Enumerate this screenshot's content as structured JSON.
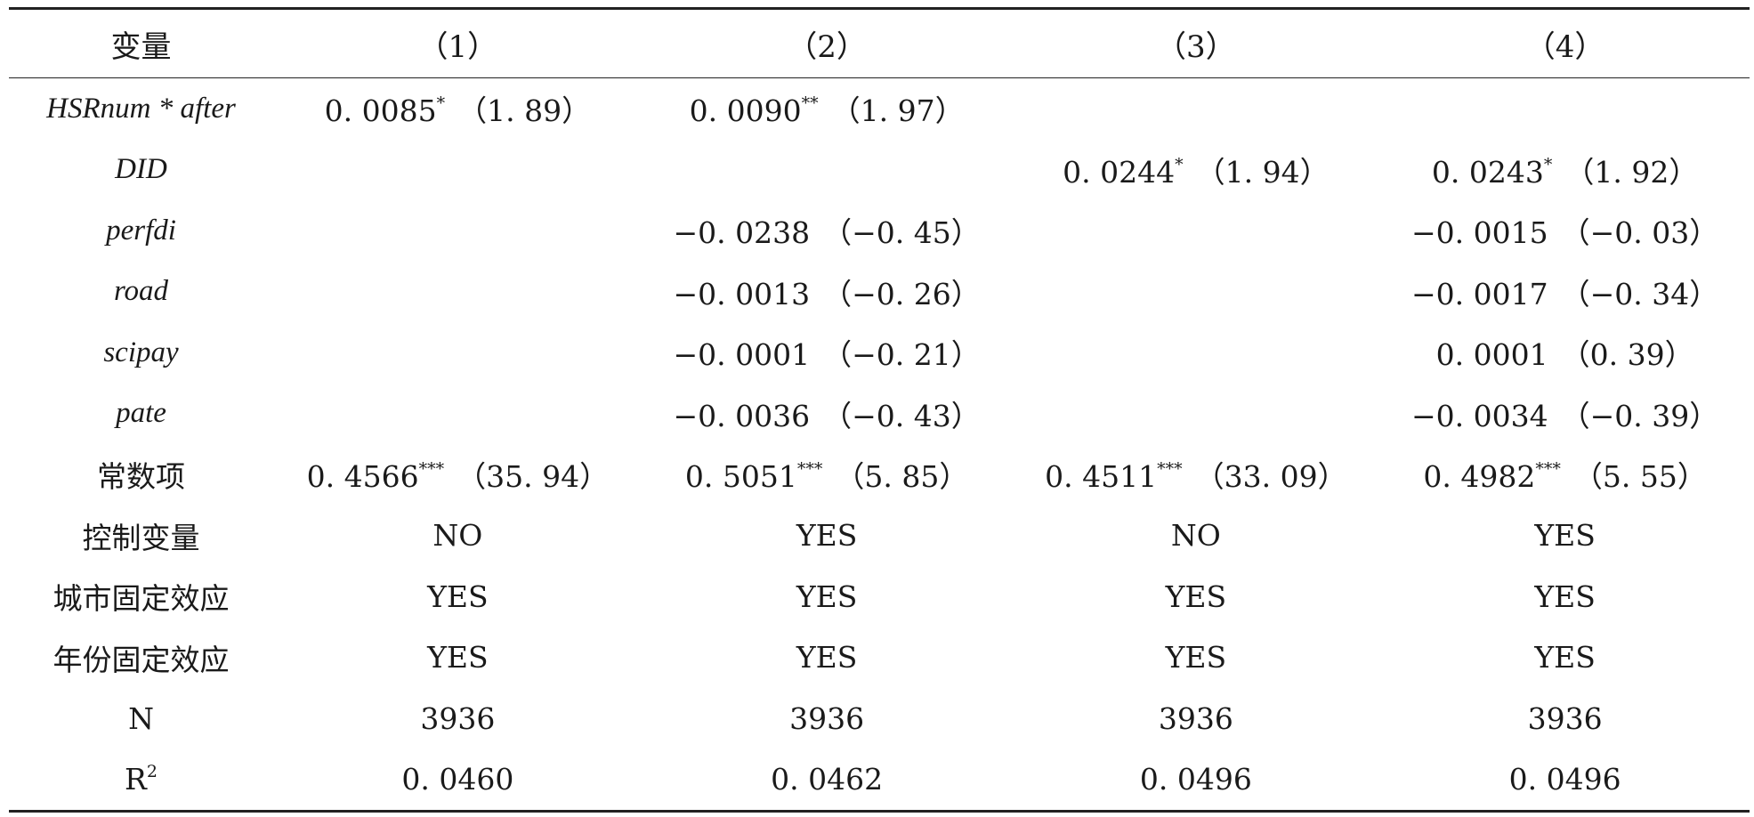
{
  "table": {
    "header": {
      "variable_label": "变量",
      "columns": [
        "（1）",
        "（2）",
        "（3）",
        "（4）"
      ]
    },
    "rows": [
      {
        "variable": "HSRnum * after",
        "italic": true,
        "cells": [
          {
            "coef": "0. 0085",
            "stars": "*",
            "t": "（1. 89）"
          },
          {
            "coef": "0. 0090",
            "stars": "**",
            "t": "（1. 97）"
          },
          {
            "coef": "",
            "stars": "",
            "t": ""
          },
          {
            "coef": "",
            "stars": "",
            "t": ""
          }
        ]
      },
      {
        "variable": "DID",
        "italic": true,
        "cells": [
          {
            "coef": "",
            "stars": "",
            "t": ""
          },
          {
            "coef": "",
            "stars": "",
            "t": ""
          },
          {
            "coef": "0. 0244",
            "stars": "*",
            "t": "（1. 94）"
          },
          {
            "coef": "0. 0243",
            "stars": "*",
            "t": "（1. 92）"
          }
        ]
      },
      {
        "variable": "perfdi",
        "italic": true,
        "cells": [
          {
            "coef": "",
            "stars": "",
            "t": ""
          },
          {
            "coef": "−0. 0238",
            "stars": "",
            "t": "（−0. 45）"
          },
          {
            "coef": "",
            "stars": "",
            "t": ""
          },
          {
            "coef": "−0. 0015",
            "stars": "",
            "t": "（−0. 03）"
          }
        ]
      },
      {
        "variable": "road",
        "italic": true,
        "cells": [
          {
            "coef": "",
            "stars": "",
            "t": ""
          },
          {
            "coef": "−0. 0013",
            "stars": "",
            "t": "（−0. 26）"
          },
          {
            "coef": "",
            "stars": "",
            "t": ""
          },
          {
            "coef": "−0. 0017",
            "stars": "",
            "t": "（−0. 34）"
          }
        ]
      },
      {
        "variable": "scipay",
        "italic": true,
        "cells": [
          {
            "coef": "",
            "stars": "",
            "t": ""
          },
          {
            "coef": "−0. 0001",
            "stars": "",
            "t": "（−0. 21）"
          },
          {
            "coef": "",
            "stars": "",
            "t": ""
          },
          {
            "coef": "0. 0001",
            "stars": "",
            "t": "（0. 39）"
          }
        ]
      },
      {
        "variable": "pate",
        "italic": true,
        "cells": [
          {
            "coef": "",
            "stars": "",
            "t": ""
          },
          {
            "coef": "−0. 0036",
            "stars": "",
            "t": "（−0. 43）"
          },
          {
            "coef": "",
            "stars": "",
            "t": ""
          },
          {
            "coef": "−0. 0034",
            "stars": "",
            "t": "（−0. 39）"
          }
        ]
      },
      {
        "variable": "常数项",
        "italic": false,
        "cells": [
          {
            "coef": "0. 4566",
            "stars": "***",
            "t": "（35. 94）"
          },
          {
            "coef": "0. 5051",
            "stars": "***",
            "t": "（5. 85）"
          },
          {
            "coef": "0. 4511",
            "stars": "***",
            "t": "（33. 09）"
          },
          {
            "coef": "0. 4982",
            "stars": "***",
            "t": "（5. 55）"
          }
        ]
      },
      {
        "variable": "控制变量",
        "italic": false,
        "cells": [
          {
            "coef": "NO",
            "stars": "",
            "t": ""
          },
          {
            "coef": "YES",
            "stars": "",
            "t": ""
          },
          {
            "coef": "NO",
            "stars": "",
            "t": ""
          },
          {
            "coef": "YES",
            "stars": "",
            "t": ""
          }
        ]
      },
      {
        "variable": "城市固定效应",
        "italic": false,
        "cells": [
          {
            "coef": "YES",
            "stars": "",
            "t": ""
          },
          {
            "coef": "YES",
            "stars": "",
            "t": ""
          },
          {
            "coef": "YES",
            "stars": "",
            "t": ""
          },
          {
            "coef": "YES",
            "stars": "",
            "t": ""
          }
        ]
      },
      {
        "variable": "年份固定效应",
        "italic": false,
        "cells": [
          {
            "coef": "YES",
            "stars": "",
            "t": ""
          },
          {
            "coef": "YES",
            "stars": "",
            "t": ""
          },
          {
            "coef": "YES",
            "stars": "",
            "t": ""
          },
          {
            "coef": "YES",
            "stars": "",
            "t": ""
          }
        ]
      },
      {
        "variable": "N",
        "italic": false,
        "cells": [
          {
            "coef": "3936",
            "stars": "",
            "t": ""
          },
          {
            "coef": "3936",
            "stars": "",
            "t": ""
          },
          {
            "coef": "3936",
            "stars": "",
            "t": ""
          },
          {
            "coef": "3936",
            "stars": "",
            "t": ""
          }
        ]
      },
      {
        "variable": "R",
        "variable_sup": "2",
        "italic": false,
        "cells": [
          {
            "coef": "0. 0460",
            "stars": "",
            "t": ""
          },
          {
            "coef": "0. 0462",
            "stars": "",
            "t": ""
          },
          {
            "coef": "0. 0496",
            "stars": "",
            "t": ""
          },
          {
            "coef": "0. 0496",
            "stars": "",
            "t": ""
          }
        ]
      }
    ]
  }
}
